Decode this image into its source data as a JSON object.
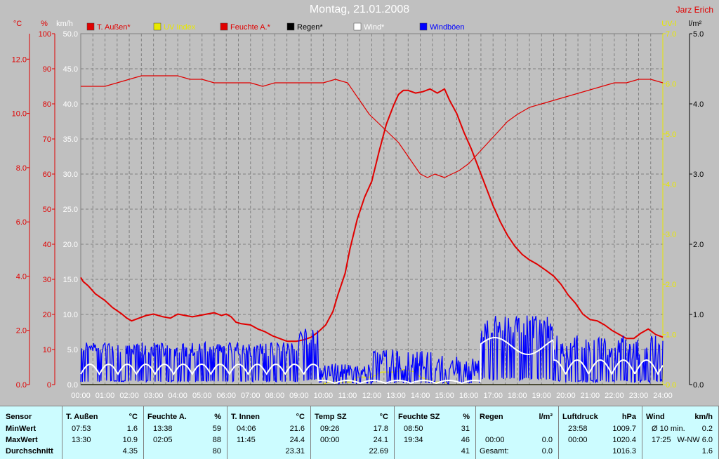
{
  "title": "Montag, 21.01.2008",
  "author": "Jarz Erich",
  "colors": {
    "red": "#e00000",
    "yellow": "#e8e800",
    "blue": "#0000ff",
    "white": "#ffffff",
    "black": "#000000",
    "grid": "#808080"
  },
  "chart_data": {
    "type": "line",
    "x_ticks": [
      "00:00",
      "01:00",
      "02:00",
      "03:00",
      "04:00",
      "05:00",
      "06:00",
      "07:00",
      "08:00",
      "09:00",
      "10:00",
      "11:00",
      "12:00",
      "13:00",
      "14:00",
      "15:00",
      "16:00",
      "17:00",
      "18:00",
      "19:00",
      "20:00",
      "21:00",
      "22:00",
      "23:00",
      "24:00"
    ],
    "axes": [
      {
        "unit": "°C",
        "ticks": [
          "0.0",
          "2.0",
          "4.0",
          "6.0",
          "8.0",
          "10.0",
          "12.0"
        ],
        "range": [
          0,
          12.94
        ],
        "color": "#e00000"
      },
      {
        "unit": "%",
        "ticks": [
          "0",
          "10",
          "20",
          "30",
          "40",
          "50",
          "60",
          "70",
          "80",
          "90",
          "100"
        ],
        "range": [
          0,
          100
        ],
        "color": "#e00000"
      },
      {
        "unit": "km/h",
        "ticks": [
          "0.0",
          "5.0",
          "10.0",
          "15.0",
          "20.0",
          "25.0",
          "30.0",
          "35.0",
          "40.0",
          "45.0",
          "50.0"
        ],
        "range": [
          0,
          50
        ],
        "color": "#ffffff"
      },
      {
        "unit": "UV-I",
        "ticks": [
          "0.0",
          "1.0",
          "2.0",
          "3.0",
          "4.0",
          "5.0",
          "6.0",
          "7.0"
        ],
        "range": [
          0,
          7
        ],
        "color": "#e8e800"
      },
      {
        "unit": "l/m²",
        "ticks": [
          "0.0",
          "1.0",
          "2.0",
          "3.0",
          "4.0",
          "5.0"
        ],
        "range": [
          0,
          5
        ],
        "color": "#000000"
      }
    ],
    "legend": [
      "T. Außen*",
      "UV Index",
      "Feuchte A.*",
      "Regen*",
      "Wind*",
      "Windböen"
    ],
    "legend_colors": [
      "#e00000",
      "#e8e800",
      "#e00000",
      "#000000",
      "#ffffff",
      "#0000ff"
    ],
    "series": [
      {
        "name": "T. Außen*",
        "axis": "°C",
        "color": "#e00000",
        "x": [
          0,
          0.1,
          0.3,
          0.6,
          1.0,
          1.3,
          1.7,
          1.9,
          2.1,
          2.4,
          2.7,
          3.0,
          3.4,
          3.7,
          4.0,
          4.3,
          4.6,
          4.9,
          5.2,
          5.5,
          5.8,
          6.0,
          6.2,
          6.4,
          6.6,
          7.0,
          7.3,
          7.6,
          7.9,
          8.2,
          8.5,
          8.9,
          9.2,
          9.5,
          9.8,
          10.1,
          10.4,
          10.6,
          10.9,
          11.1,
          11.4,
          11.7,
          12.0,
          12.3,
          12.6,
          12.9,
          13.1,
          13.3,
          13.5,
          13.8,
          14.1,
          14.4,
          14.7,
          15.0,
          15.2,
          15.5,
          15.8,
          16.1,
          16.4,
          16.7,
          17.0,
          17.3,
          17.6,
          17.9,
          18.2,
          18.5,
          18.8,
          19.2,
          19.5,
          19.8,
          20.1,
          20.4,
          20.7,
          21.0,
          21.3,
          21.6,
          21.9,
          22.2,
          22.5,
          22.8,
          23.1,
          23.4,
          23.7,
          24.0
        ],
        "y": [
          3.95,
          3.8,
          3.65,
          3.35,
          3.1,
          2.85,
          2.6,
          2.45,
          2.35,
          2.45,
          2.55,
          2.6,
          2.5,
          2.45,
          2.6,
          2.55,
          2.5,
          2.55,
          2.6,
          2.65,
          2.55,
          2.6,
          2.5,
          2.3,
          2.25,
          2.2,
          2.05,
          1.95,
          1.8,
          1.7,
          1.6,
          1.6,
          1.65,
          1.75,
          1.95,
          2.2,
          2.7,
          3.3,
          4.1,
          5.0,
          6.1,
          6.9,
          7.5,
          8.6,
          9.6,
          10.3,
          10.7,
          10.85,
          10.85,
          10.75,
          10.8,
          10.9,
          10.75,
          10.9,
          10.5,
          10.0,
          9.3,
          8.7,
          8.0,
          7.3,
          6.6,
          6.0,
          5.5,
          5.1,
          4.8,
          4.6,
          4.45,
          4.2,
          4.0,
          3.7,
          3.3,
          3.0,
          2.6,
          2.4,
          2.35,
          2.2,
          2.0,
          1.85,
          1.7,
          1.7,
          1.9,
          2.05,
          1.85,
          1.75
        ]
      },
      {
        "name": "Feuchte A.*",
        "axis": "%",
        "color": "#e00000",
        "x": [
          0,
          0.5,
          1.0,
          1.5,
          2.0,
          2.5,
          3.0,
          3.5,
          4.0,
          4.5,
          5.0,
          5.5,
          6.0,
          6.5,
          7.0,
          7.5,
          8.0,
          8.5,
          9.0,
          9.5,
          10.0,
          10.5,
          11.0,
          11.3,
          11.6,
          11.9,
          12.2,
          12.5,
          12.8,
          13.1,
          13.4,
          13.7,
          14.0,
          14.3,
          14.6,
          15.0,
          15.3,
          15.6,
          16.0,
          16.4,
          16.8,
          17.2,
          17.6,
          18.0,
          18.5,
          19.0,
          19.5,
          20.0,
          20.5,
          21.0,
          21.5,
          22.0,
          22.5,
          23.0,
          23.5,
          24.0
        ],
        "y": [
          85,
          85,
          85,
          86,
          87,
          88,
          88,
          88,
          88,
          87,
          87,
          86,
          86,
          86,
          86,
          85,
          86,
          86,
          86,
          86,
          86,
          87,
          86,
          83,
          80,
          77,
          75,
          73,
          71,
          69,
          66,
          63,
          60,
          59,
          60,
          59,
          60,
          61,
          63,
          66,
          69,
          72,
          75,
          77,
          79,
          80,
          81,
          82,
          83,
          84,
          85,
          86,
          86,
          87,
          87,
          86
        ]
      },
      {
        "name": "UV Index",
        "axis": "UV-I",
        "color": "#e8e800",
        "x": [
          0,
          10.0,
          10.2,
          11.2,
          11.4,
          12.0,
          12.4,
          13.0,
          13.3,
          13.8,
          14.0,
          14.3,
          14.6,
          15.0,
          15.2,
          24.0
        ],
        "y": [
          0,
          0,
          0.05,
          0.05,
          0.15,
          0.15,
          0.25,
          0.25,
          0.3,
          0.25,
          0.15,
          0.1,
          0.05,
          0.05,
          0,
          0
        ]
      },
      {
        "name": "Regen*",
        "axis": "l/m²",
        "color": "#000000",
        "x": [
          0,
          24
        ],
        "y": [
          0,
          0
        ]
      }
    ]
  },
  "stats": {
    "labels": {
      "sensor": "Sensor",
      "min": "MinWert",
      "max": "MaxWert",
      "avg": "Durchschnitt"
    },
    "columns": [
      {
        "title": "T. Außen",
        "unit": "°C",
        "min_time": "07:53",
        "min_val": "1.6",
        "max_time": "13:30",
        "max_val": "10.9",
        "avg": "4.35"
      },
      {
        "title": "Feuchte A.",
        "unit": "%",
        "min_time": "13:38",
        "min_val": "59",
        "max_time": "02:05",
        "max_val": "88",
        "avg": "80"
      },
      {
        "title": "T. Innen",
        "unit": "°C",
        "min_time": "04:06",
        "min_val": "21.6",
        "max_time": "11:45",
        "max_val": "24.4",
        "avg": "23.31"
      },
      {
        "title": "Temp SZ",
        "unit": "°C",
        "min_time": "09:26",
        "min_val": "17.8",
        "max_time": "00:00",
        "max_val": "24.1",
        "avg": "22.69"
      },
      {
        "title": "Feuchte SZ",
        "unit": "%",
        "min_time": "08:50",
        "min_val": "31",
        "max_time": "19:34",
        "max_val": "46",
        "avg": "41"
      },
      {
        "title": "Regen",
        "unit": "l/m²",
        "min_time": "",
        "min_val": "",
        "max_time": "00:00",
        "max_val": "0.0",
        "avg_label": "Gesamt:",
        "avg": "0.0"
      },
      {
        "title": "Luftdruck",
        "unit": "hPa",
        "min_time": "23:58",
        "min_val": "1009.7",
        "max_time": "00:00",
        "max_val": "1020.4",
        "avg": "1016.3"
      },
      {
        "title": "Wind",
        "unit": "km/h",
        "min_time": "Ø 10 min.",
        "min_val": "0.2",
        "max_time": "17:25",
        "max_val": "W-NW 6.0",
        "avg": "1.6"
      }
    ]
  }
}
